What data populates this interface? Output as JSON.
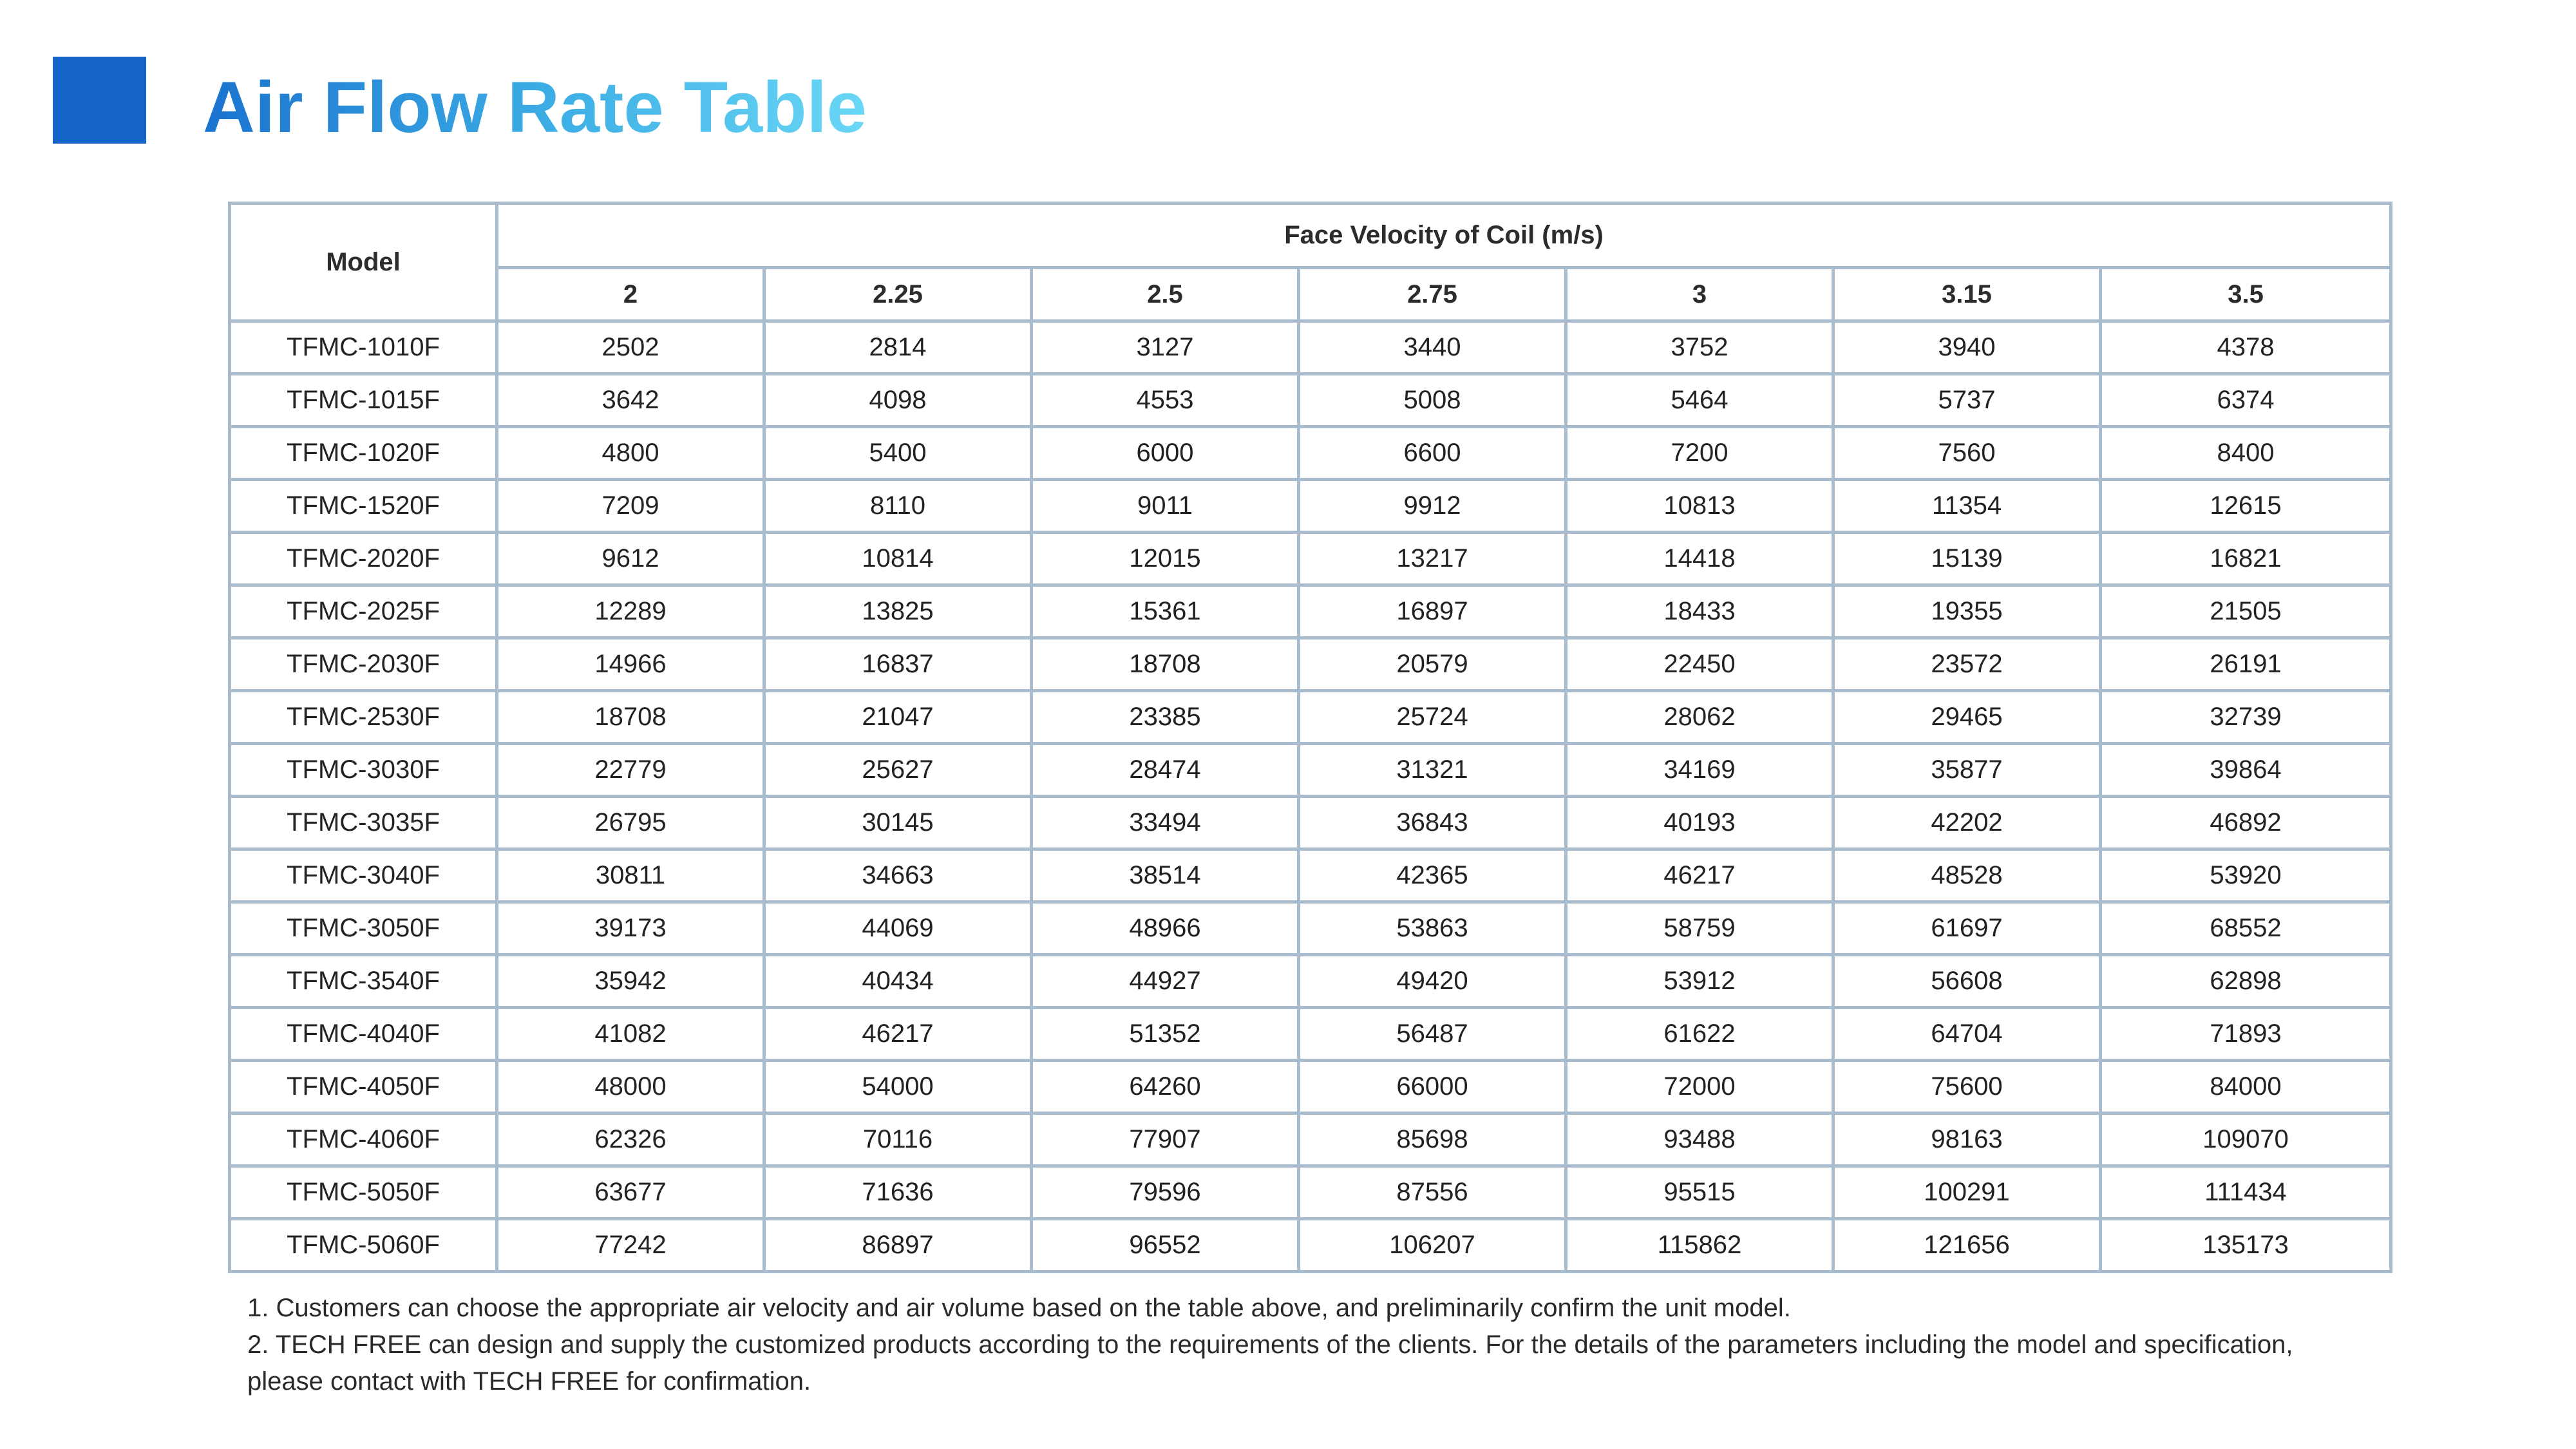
{
  "title": "Air Flow Rate Table",
  "colors": {
    "accent_square": "#1565c8",
    "title_gradient_start": "#1a73d0",
    "title_gradient_end": "#6ad7f5",
    "table_border": "#a9bccd"
  },
  "table": {
    "model_header": "Model",
    "group_header": "Face Velocity of Coil (m/s)",
    "velocities": [
      "2",
      "2.25",
      "2.5",
      "2.75",
      "3",
      "3.15",
      "3.5"
    ],
    "rows": [
      {
        "model": "TFMC-1010F",
        "values": [
          "2502",
          "2814",
          "3127",
          "3440",
          "3752",
          "3940",
          "4378"
        ]
      },
      {
        "model": "TFMC-1015F",
        "values": [
          "3642",
          "4098",
          "4553",
          "5008",
          "5464",
          "5737",
          "6374"
        ]
      },
      {
        "model": "TFMC-1020F",
        "values": [
          "4800",
          "5400",
          "6000",
          "6600",
          "7200",
          "7560",
          "8400"
        ]
      },
      {
        "model": "TFMC-1520F",
        "values": [
          "7209",
          "8110",
          "9011",
          "9912",
          "10813",
          "11354",
          "12615"
        ]
      },
      {
        "model": "TFMC-2020F",
        "values": [
          "9612",
          "10814",
          "12015",
          "13217",
          "14418",
          "15139",
          "16821"
        ]
      },
      {
        "model": "TFMC-2025F",
        "values": [
          "12289",
          "13825",
          "15361",
          "16897",
          "18433",
          "19355",
          "21505"
        ]
      },
      {
        "model": "TFMC-2030F",
        "values": [
          "14966",
          "16837",
          "18708",
          "20579",
          "22450",
          "23572",
          "26191"
        ]
      },
      {
        "model": "TFMC-2530F",
        "values": [
          "18708",
          "21047",
          "23385",
          "25724",
          "28062",
          "29465",
          "32739"
        ]
      },
      {
        "model": "TFMC-3030F",
        "values": [
          "22779",
          "25627",
          "28474",
          "31321",
          "34169",
          "35877",
          "39864"
        ]
      },
      {
        "model": "TFMC-3035F",
        "values": [
          "26795",
          "30145",
          "33494",
          "36843",
          "40193",
          "42202",
          "46892"
        ]
      },
      {
        "model": "TFMC-3040F",
        "values": [
          "30811",
          "34663",
          "38514",
          "42365",
          "46217",
          "48528",
          "53920"
        ]
      },
      {
        "model": "TFMC-3050F",
        "values": [
          "39173",
          "44069",
          "48966",
          "53863",
          "58759",
          "61697",
          "68552"
        ]
      },
      {
        "model": "TFMC-3540F",
        "values": [
          "35942",
          "40434",
          "44927",
          "49420",
          "53912",
          "56608",
          "62898"
        ]
      },
      {
        "model": "TFMC-4040F",
        "values": [
          "41082",
          "46217",
          "51352",
          "56487",
          "61622",
          "64704",
          "71893"
        ]
      },
      {
        "model": "TFMC-4050F",
        "values": [
          "48000",
          "54000",
          "64260",
          "66000",
          "72000",
          "75600",
          "84000"
        ]
      },
      {
        "model": "TFMC-4060F",
        "values": [
          "62326",
          "70116",
          "77907",
          "85698",
          "93488",
          "98163",
          "109070"
        ]
      },
      {
        "model": "TFMC-5050F",
        "values": [
          "63677",
          "71636",
          "79596",
          "87556",
          "95515",
          "100291",
          "111434"
        ]
      },
      {
        "model": "TFMC-5060F",
        "values": [
          "77242",
          "86897",
          "96552",
          "106207",
          "115862",
          "121656",
          "135173"
        ]
      }
    ]
  },
  "notes": [
    "1. Customers can choose the appropriate air velocity and air volume based on the table above, and preliminarily confirm the unit model.",
    "2.  TECH FREE can design and supply the customized products according to the requirements of the clients. For the details of the parameters including the model and specification, please contact with TECH FREE for confirmation."
  ]
}
